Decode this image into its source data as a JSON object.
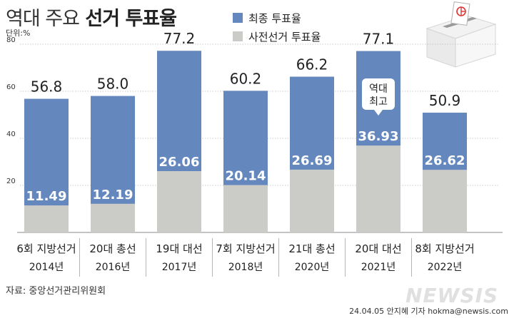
{
  "header": {
    "title_light": "역대 주요",
    "title_bold": "선거 투표율",
    "unit": "단위:%"
  },
  "legend": {
    "final": "최종 투표율",
    "early": "사전선거 투표율"
  },
  "colors": {
    "final": "#6488bd",
    "early": "#cbcbc8",
    "gridline": "#bbbbbb",
    "divider": "#b5b5b5"
  },
  "icons": {
    "ballot": "ballot-box-icon"
  },
  "annotation": {
    "record_line1": "역대",
    "record_line2": "최고"
  },
  "chart_data": {
    "type": "bar",
    "stacked": false,
    "categories": [
      "6회 지방선거",
      "20대 총선",
      "19대 대선",
      "7회 지방선거",
      "21대 총선",
      "20대 대선",
      "8회 지방선거"
    ],
    "years": [
      "2014년",
      "2016년",
      "2017년",
      "2018년",
      "2020년",
      "2021년",
      "2022년"
    ],
    "final_labels": [
      "56.8",
      "58.0",
      "77.2",
      "60.2",
      "66.2",
      "77.1",
      "50.9"
    ],
    "early_labels": [
      "11.49",
      "12.19",
      "26.06",
      "20.14",
      "26.69",
      "36.93",
      "26.62"
    ],
    "series": [
      {
        "name": "최종 투표율",
        "values": [
          56.8,
          58.0,
          77.2,
          60.2,
          66.2,
          77.1,
          50.9
        ]
      },
      {
        "name": "사전선거 투표율",
        "values": [
          11.49,
          12.19,
          26.06,
          20.14,
          26.69,
          36.93,
          26.62
        ]
      }
    ],
    "yticks": [
      "20",
      "40",
      "60",
      "80"
    ],
    "ylim": [
      0,
      80
    ],
    "grid": true,
    "legend_position": "top"
  },
  "footer": {
    "source": "자료: 중앙선거관리위원회",
    "credit": "24.04.05 안지혜 기자 hokma@newsis.com",
    "watermark": "NEWSIS"
  }
}
